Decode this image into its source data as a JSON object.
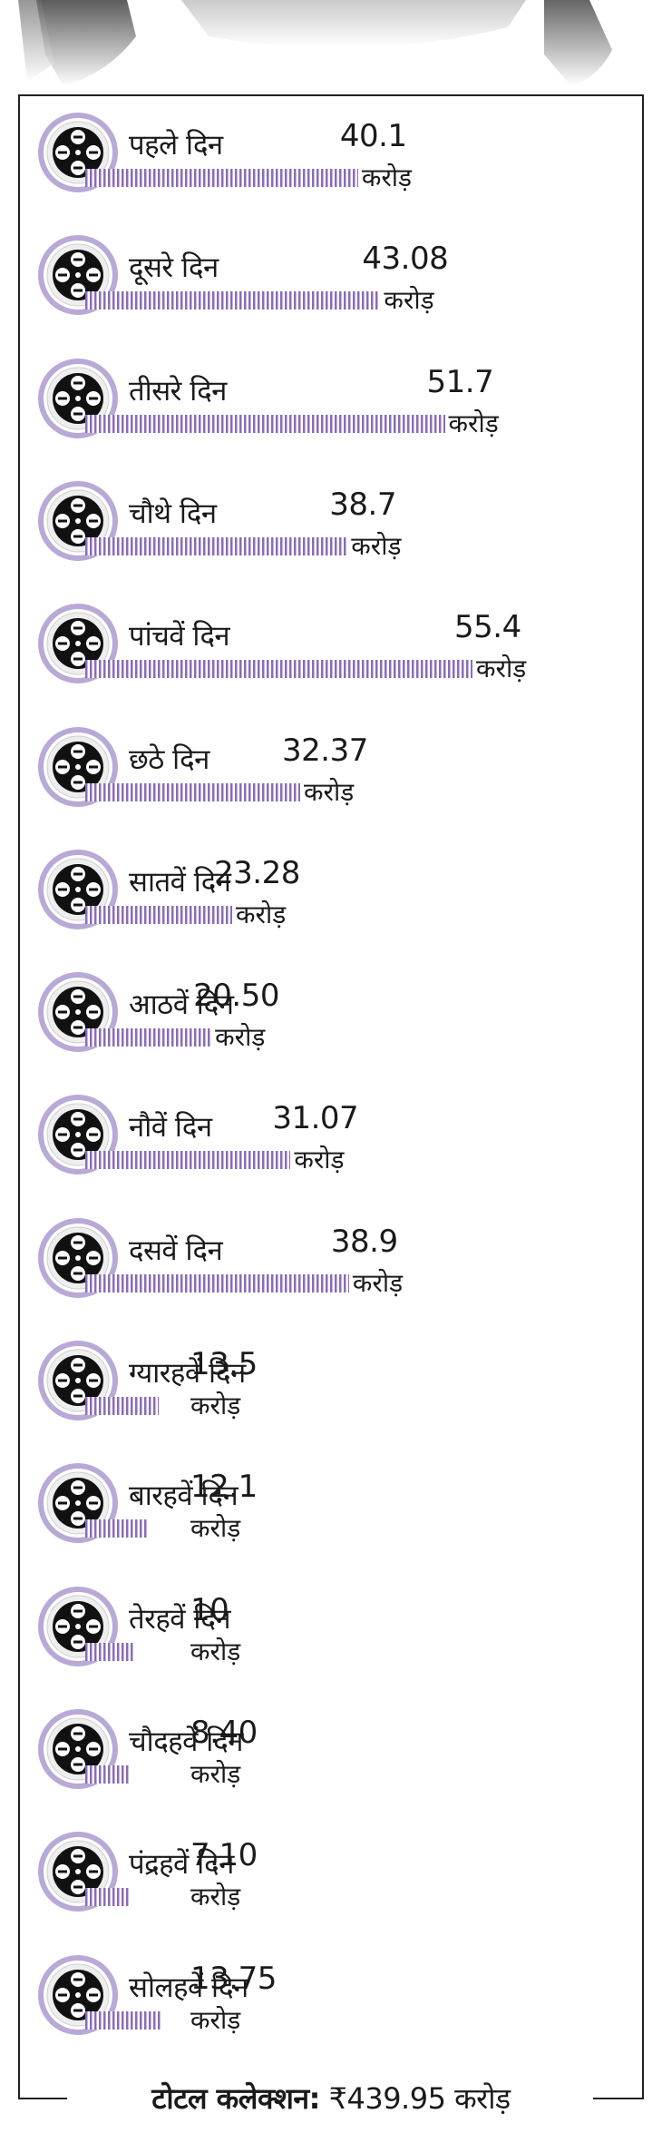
{
  "chart_data": {
    "type": "bar",
    "orientation": "horizontal",
    "categories": [
      "पहले दिन",
      "दूसरे दिन",
      "तीसरे दिन",
      "चौथे दिन",
      "पांचवें दिन",
      "छठे दिन",
      "सातवें दिन",
      "आठवें दिन",
      "नौवें दिन",
      "दसवें दिन",
      "ग्यारहवें दिन",
      "बारहवें दिन",
      "तेरहवें दिन",
      "चौदहवें  दिन",
      "पंद्रहवें दिन",
      "सोलहवें दिन"
    ],
    "value_labels": [
      "40.1",
      "43.08",
      "51.7",
      "38.7",
      "55.4",
      "32.37",
      "23.28",
      "20.50",
      "31.07",
      "38.9",
      "13.5",
      "12.1",
      "10",
      "8.40",
      "7.10",
      "13.75"
    ],
    "values": [
      40.1,
      43.08,
      51.7,
      38.7,
      55.4,
      32.37,
      23.28,
      20.5,
      31.07,
      38.9,
      13.5,
      12.1,
      10,
      8.4,
      7.1,
      13.75
    ],
    "unit_label": "करोड़",
    "bar_color": "#8a6cb8",
    "title": "",
    "xlabel": "",
    "ylabel": ""
  },
  "total": {
    "label": "टोटल कलेक्शन:",
    "value": "₹439.95 करोड़"
  }
}
